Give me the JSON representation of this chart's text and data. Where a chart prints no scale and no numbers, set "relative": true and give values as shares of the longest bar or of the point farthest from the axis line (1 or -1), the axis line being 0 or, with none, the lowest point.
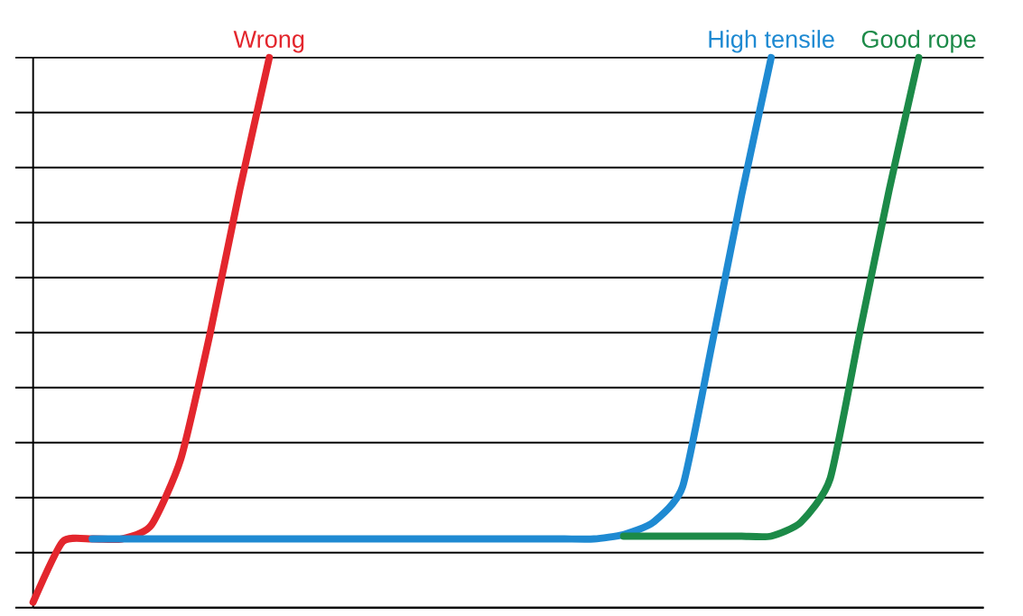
{
  "chart_data": {
    "type": "line",
    "relative": true,
    "grid": "y",
    "marker": "none",
    "line_style": "solid",
    "categories": [
      null,
      null,
      null,
      null,
      null,
      null,
      null,
      null,
      null,
      null,
      null,
      null,
      null,
      null,
      null,
      null,
      null,
      null,
      null,
      null,
      null,
      null,
      null,
      null,
      null,
      null,
      null,
      null,
      null,
      null,
      null,
      null,
      null
    ],
    "series": [
      {
        "name": "Wrong",
        "color": "#e3262d",
        "values": [
          0.01,
          0.12,
          0.125,
          0.125,
          0.15,
          0.27,
          0.5,
          0.76,
          1.0,
          null,
          null,
          null,
          null,
          null,
          null,
          null,
          null,
          null,
          null,
          null,
          null,
          null,
          null,
          null,
          null,
          null,
          null,
          null,
          null,
          null,
          null,
          null,
          null
        ]
      },
      {
        "name": "High tensile",
        "color": "#1f8ad2",
        "values": [
          null,
          null,
          0.125,
          0.125,
          0.125,
          0.125,
          0.125,
          0.125,
          0.125,
          0.125,
          0.125,
          0.125,
          0.125,
          0.125,
          0.125,
          0.125,
          0.125,
          0.125,
          0.125,
          0.125,
          0.133,
          0.155,
          0.22,
          0.48,
          0.75,
          1.0,
          null,
          null,
          null,
          null,
          null,
          null,
          null
        ]
      },
      {
        "name": "Good rope",
        "color": "#1c8a48",
        "values": [
          null,
          null,
          null,
          null,
          null,
          null,
          null,
          null,
          null,
          null,
          null,
          null,
          null,
          null,
          null,
          null,
          null,
          null,
          null,
          null,
          0.13,
          0.13,
          0.13,
          0.13,
          0.13,
          0.13,
          0.155,
          0.235,
          0.5,
          0.76,
          1.0,
          null,
          null
        ]
      }
    ]
  }
}
